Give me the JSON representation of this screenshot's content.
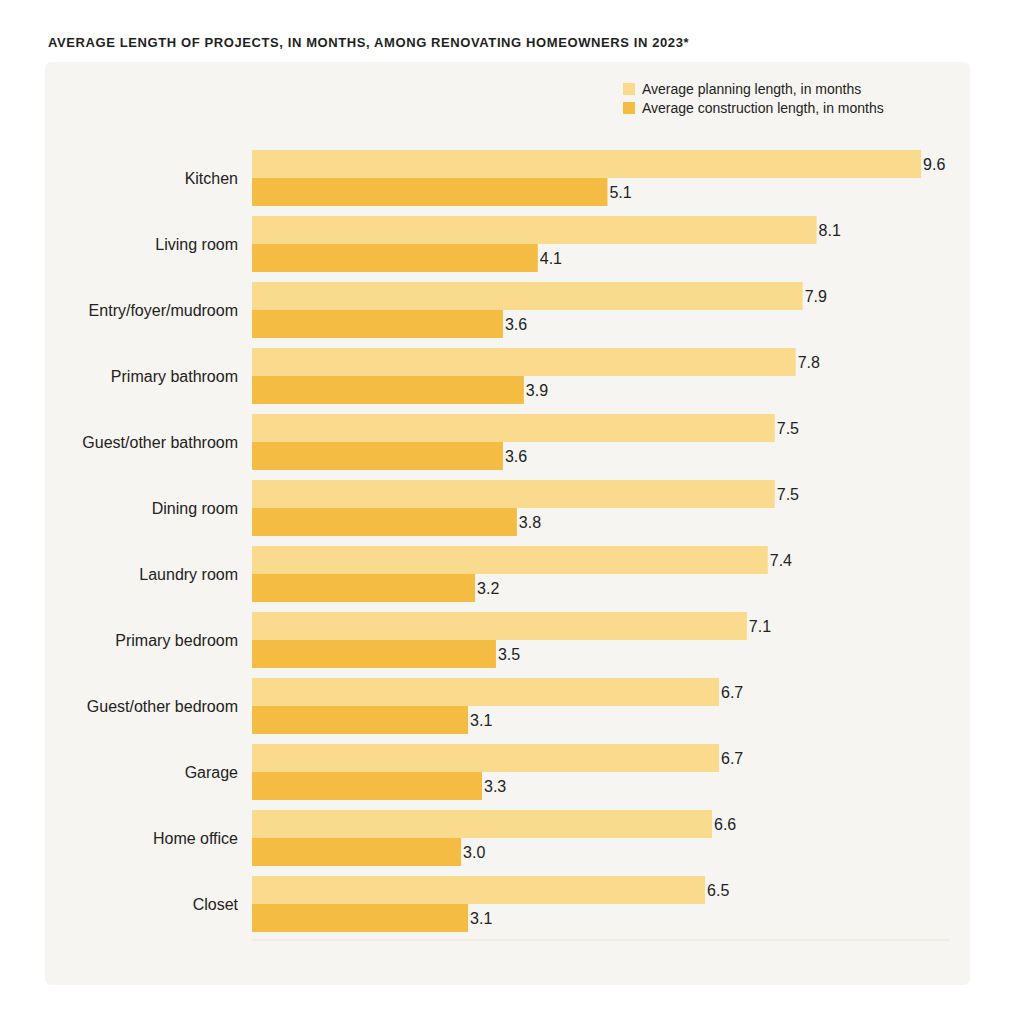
{
  "chart_data": {
    "type": "bar",
    "orientation": "horizontal",
    "title": "AVERAGE LENGTH OF PROJECTS, IN MONTHS, AMONG RENOVATING HOMEOWNERS IN 2023*",
    "categories": [
      "Kitchen",
      "Living room",
      "Entry/foyer/mudroom",
      "Primary bathroom",
      "Guest/other bathroom",
      "Dining room",
      "Laundry room",
      "Primary bedroom",
      "Guest/other bedroom",
      "Garage",
      "Home office",
      "Closet"
    ],
    "series": [
      {
        "name": "Average planning length, in months",
        "color": "#fadb8e",
        "values": [
          9.6,
          8.1,
          7.9,
          7.8,
          7.5,
          7.5,
          7.4,
          7.1,
          6.7,
          6.7,
          6.6,
          6.5
        ]
      },
      {
        "name": "Average construction length, in months",
        "color": "#f4bc42",
        "values": [
          5.1,
          4.1,
          3.6,
          3.9,
          3.6,
          3.8,
          3.2,
          3.5,
          3.1,
          3.3,
          3.0,
          3.1
        ],
        "value_labels": [
          "5.1",
          "4.1",
          "3.6",
          "3.9",
          "3.6",
          "3.8",
          "3.2",
          "3.5",
          "3.1",
          "3.3",
          "3.0",
          "3.1"
        ]
      }
    ],
    "xlim": [
      0,
      10
    ],
    "data_labels": true,
    "tick_labels": false,
    "legend": "top-right",
    "grid": false
  }
}
